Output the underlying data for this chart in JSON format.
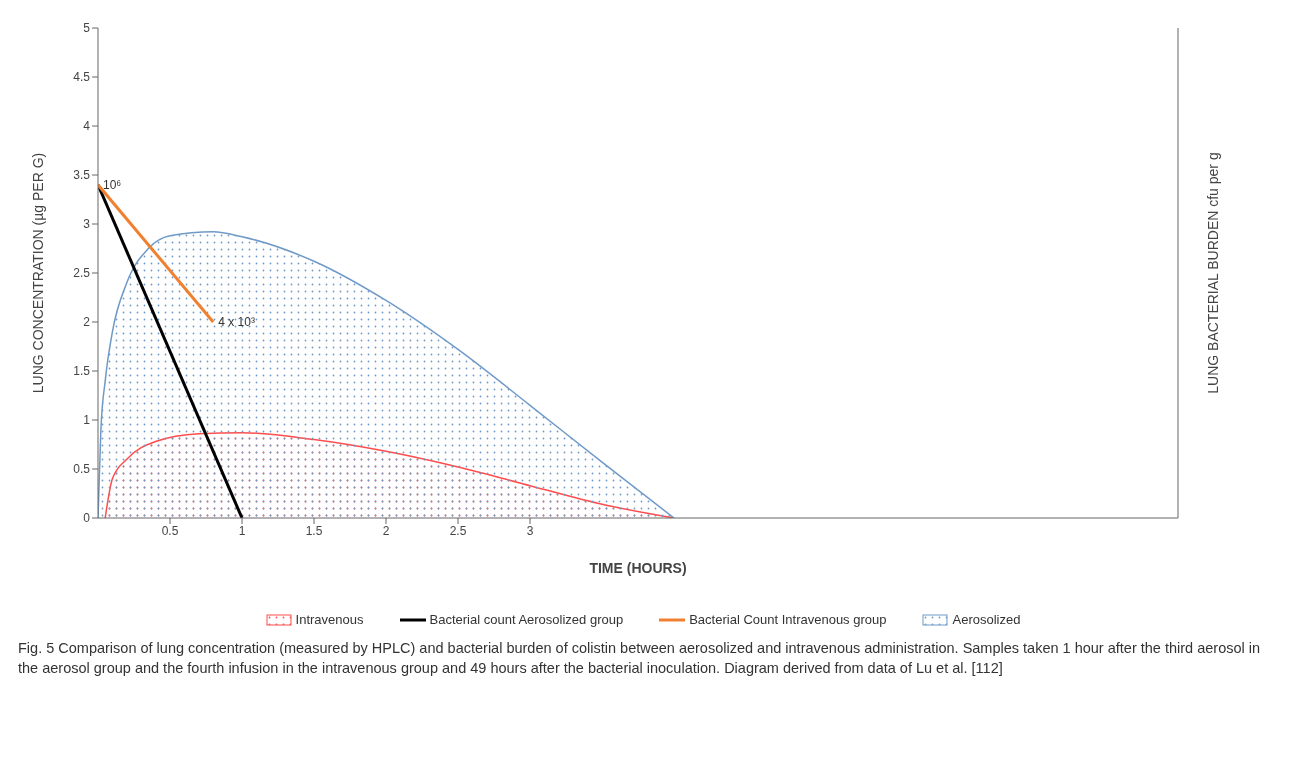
{
  "chart_data": {
    "type": "area",
    "xlabel": "TIME (HOURS)",
    "ylabel": "LUNG CONCENTRATION (µg PER G)",
    "y2label": "LUNG BACTERIAL BURDEN cfu per g",
    "xlim": [
      0,
      7.5
    ],
    "xticks": [
      0.5,
      1,
      1.5,
      2,
      2.5,
      3
    ],
    "ylim": [
      0,
      5
    ],
    "yticks": [
      0,
      0.5,
      1,
      1.5,
      2,
      2.5,
      3,
      3.5,
      4,
      4.5,
      5
    ],
    "series": [
      {
        "name": "Intravenous",
        "color": "#ff4d4d",
        "x": [
          0.05,
          0.1,
          0.2,
          0.4,
          0.7,
          1,
          1.5,
          2,
          2.5,
          3,
          3.5,
          4
        ],
        "values": [
          0,
          0.4,
          0.6,
          0.78,
          0.86,
          0.87,
          0.8,
          0.68,
          0.52,
          0.33,
          0.14,
          0
        ]
      },
      {
        "name": "Bacterial count Aerosolized group",
        "type": "line",
        "color": "#000000",
        "x": [
          0,
          1
        ],
        "values": [
          3.4,
          0
        ]
      },
      {
        "name": "Bacterial Count Intravenous group",
        "type": "line",
        "color": "#f08030",
        "x": [
          0,
          0.8
        ],
        "values": [
          3.4,
          2
        ]
      },
      {
        "name": "Aerosolized",
        "color": "#6f9ac8",
        "x": [
          0,
          0.02,
          0.05,
          0.1,
          0.2,
          0.35,
          0.5,
          0.8,
          1,
          1.5,
          2,
          2.5,
          3,
          3.5,
          4
        ],
        "values": [
          0,
          0.9,
          1.4,
          1.9,
          2.4,
          2.75,
          2.88,
          2.92,
          2.87,
          2.62,
          2.22,
          1.72,
          1.15,
          0.57,
          0
        ]
      }
    ],
    "annotations": [
      {
        "text": "10⁶",
        "x": 0,
        "y": 3.4
      },
      {
        "text": "4 x 10³",
        "x": 0.8,
        "y": 2
      },
      "Fig. 5 Comparison of lung concentration (measured by HPLC) and bacterial burden of colistin between aerosolized and intravenous administration. Samples taken 1 hour after the third aerosol in the aerosol group and the fourth infusion in the intravenous group and 49 hours after the bacterial inoculation. Diagram derived from data of Lu et al. [112]"
    ],
    "legend": "bottom",
    "grid": false,
    "marker": "none"
  }
}
